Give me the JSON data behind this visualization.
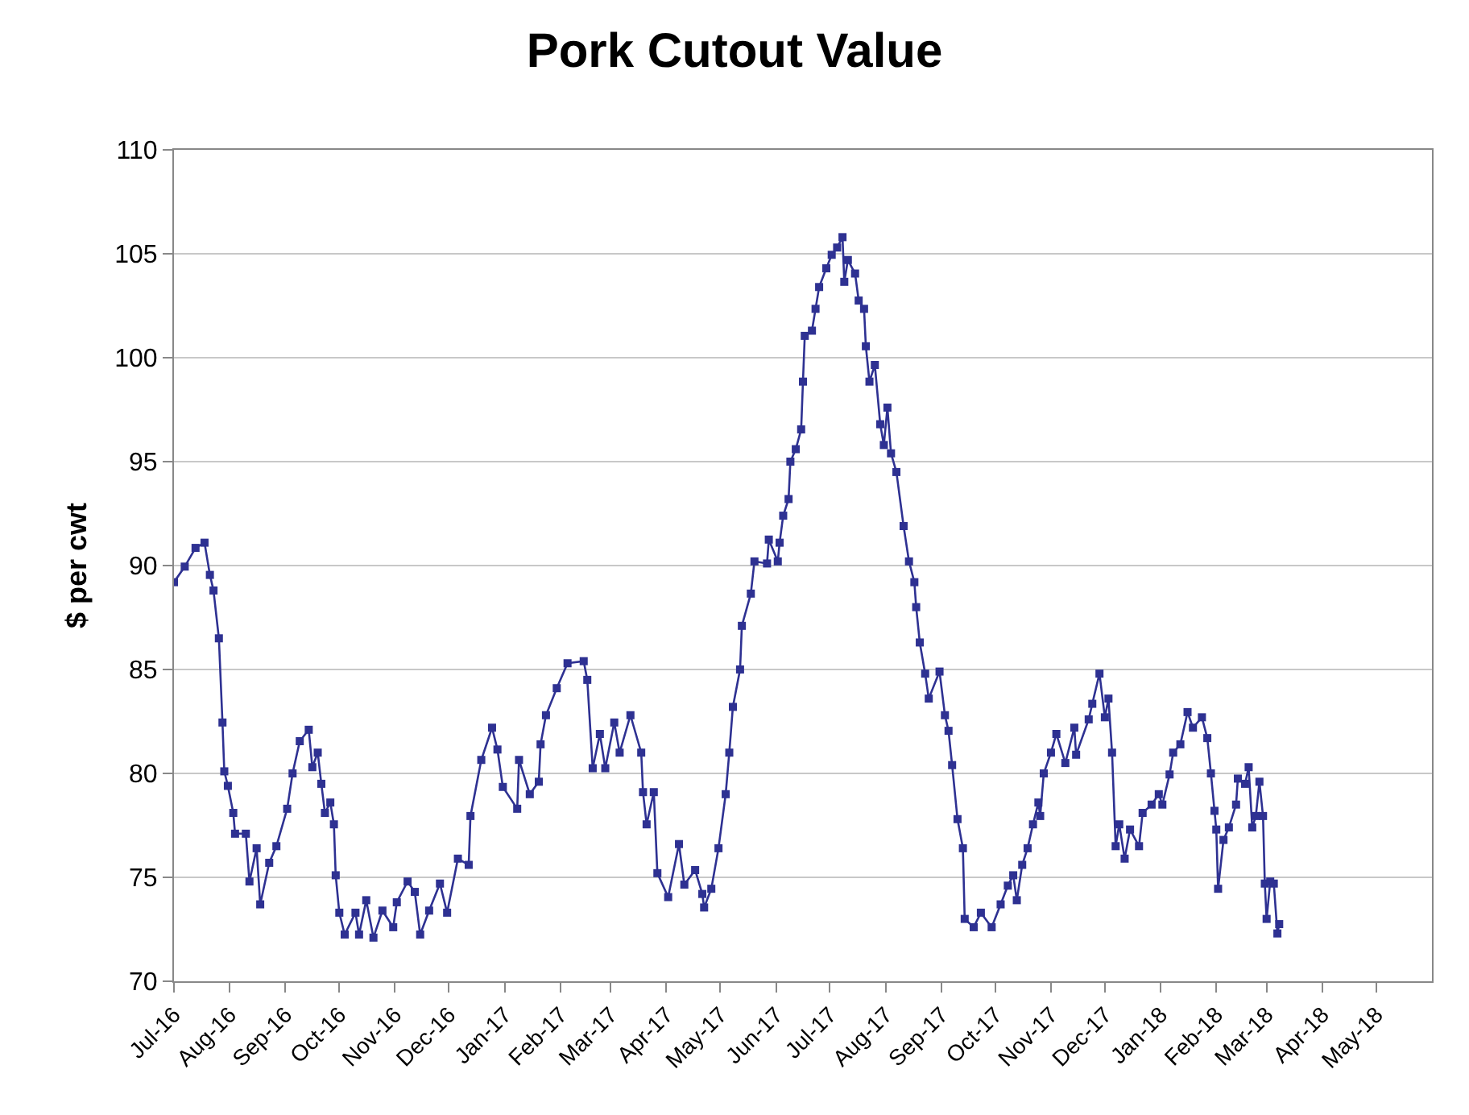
{
  "chart_data": {
    "type": "line",
    "title": "Pork Cutout Value",
    "ylabel": "$ per cwt",
    "x": [
      "2016-07-01",
      "2016-07-07",
      "2016-07-13",
      "2016-07-18",
      "2016-07-21",
      "2016-07-23",
      "2016-07-26",
      "2016-07-28",
      "2016-07-29",
      "2016-07-31",
      "2016-08-03",
      "2016-08-04",
      "2016-08-10",
      "2016-08-12",
      "2016-08-16",
      "2016-08-18",
      "2016-08-23",
      "2016-08-27",
      "2016-09-02",
      "2016-09-05",
      "2016-09-09",
      "2016-09-14",
      "2016-09-16",
      "2016-09-19",
      "2016-09-21",
      "2016-09-23",
      "2016-09-26",
      "2016-09-28",
      "2016-09-29",
      "2016-10-01",
      "2016-10-04",
      "2016-10-10",
      "2016-10-12",
      "2016-10-16",
      "2016-10-20",
      "2016-10-25",
      "2016-10-31",
      "2016-11-02",
      "2016-11-08",
      "2016-11-12",
      "2016-11-15",
      "2016-11-20",
      "2016-11-26",
      "2016-11-30",
      "2016-12-06",
      "2016-12-12",
      "2016-12-13",
      "2016-12-19",
      "2016-12-25",
      "2016-12-28",
      "2016-12-31",
      "2017-01-08",
      "2017-01-09",
      "2017-01-15",
      "2017-01-20",
      "2017-01-21",
      "2017-01-24",
      "2017-01-30",
      "2017-02-05",
      "2017-02-14",
      "2017-02-16",
      "2017-02-19",
      "2017-02-23",
      "2017-02-26",
      "2017-03-03",
      "2017-03-06",
      "2017-03-12",
      "2017-03-18",
      "2017-03-19",
      "2017-03-21",
      "2017-03-25",
      "2017-03-27",
      "2017-04-02",
      "2017-04-08",
      "2017-04-11",
      "2017-04-17",
      "2017-04-21",
      "2017-04-22",
      "2017-04-26",
      "2017-04-30",
      "2017-05-04",
      "2017-05-06",
      "2017-05-08",
      "2017-05-12",
      "2017-05-13",
      "2017-05-18",
      "2017-05-20",
      "2017-05-27",
      "2017-05-28",
      "2017-06-02",
      "2017-06-03",
      "2017-06-05",
      "2017-06-08",
      "2017-06-09",
      "2017-06-12",
      "2017-06-15",
      "2017-06-16",
      "2017-06-17",
      "2017-06-21",
      "2017-06-23",
      "2017-06-25",
      "2017-06-29",
      "2017-07-02",
      "2017-07-05",
      "2017-07-08",
      "2017-07-09",
      "2017-07-11",
      "2017-07-15",
      "2017-07-17",
      "2017-07-20",
      "2017-07-21",
      "2017-07-23",
      "2017-07-26",
      "2017-07-29",
      "2017-07-31",
      "2017-08-02",
      "2017-08-04",
      "2017-08-07",
      "2017-08-11",
      "2017-08-14",
      "2017-08-17",
      "2017-08-18",
      "2017-08-20",
      "2017-08-23",
      "2017-08-25",
      "2017-08-31",
      "2017-09-03",
      "2017-09-05",
      "2017-09-07",
      "2017-09-10",
      "2017-09-13",
      "2017-09-14",
      "2017-09-19",
      "2017-09-23",
      "2017-09-29",
      "2017-10-04",
      "2017-10-08",
      "2017-10-11",
      "2017-10-13",
      "2017-10-16",
      "2017-10-19",
      "2017-10-22",
      "2017-10-25",
      "2017-10-26",
      "2017-10-28",
      "2017-11-01",
      "2017-11-04",
      "2017-11-09",
      "2017-11-14",
      "2017-11-15",
      "2017-11-22",
      "2017-11-24",
      "2017-11-28",
      "2017-12-01",
      "2017-12-03",
      "2017-12-05",
      "2017-12-07",
      "2017-12-09",
      "2017-12-12",
      "2017-12-15",
      "2017-12-20",
      "2017-12-22",
      "2017-12-27",
      "2017-12-31",
      "2018-01-02",
      "2018-01-06",
      "2018-01-08",
      "2018-01-12",
      "2018-01-16",
      "2018-01-19",
      "2018-01-24",
      "2018-01-27",
      "2018-01-29",
      "2018-01-31",
      "2018-02-01",
      "2018-02-02",
      "2018-02-05",
      "2018-02-08",
      "2018-02-12",
      "2018-02-13",
      "2018-02-17",
      "2018-02-19",
      "2018-02-21",
      "2018-02-23",
      "2018-02-25",
      "2018-02-27",
      "2018-02-28",
      "2018-03-01",
      "2018-03-03",
      "2018-03-05",
      "2018-03-07",
      "2018-03-08"
    ],
    "series": [
      {
        "color": "#2e3192",
        "values": [
          89.2,
          89.95,
          90.85,
          91.1,
          89.55,
          88.8,
          86.5,
          82.45,
          80.1,
          79.4,
          78.1,
          77.1,
          77.1,
          74.8,
          76.4,
          73.7,
          75.7,
          76.5,
          78.3,
          80.0,
          81.55,
          82.1,
          80.3,
          81.0,
          79.5,
          78.1,
          78.6,
          77.55,
          75.1,
          73.3,
          72.25,
          73.3,
          72.25,
          73.9,
          72.1,
          73.4,
          72.6,
          73.8,
          74.8,
          74.3,
          72.25,
          73.4,
          74.7,
          73.3,
          75.9,
          75.6,
          77.95,
          80.65,
          82.2,
          81.15,
          79.35,
          78.3,
          80.65,
          79.0,
          79.6,
          81.4,
          82.8,
          84.1,
          85.3,
          85.4,
          84.5,
          80.25,
          81.9,
          80.25,
          82.45,
          81.0,
          82.8,
          81.0,
          79.1,
          77.55,
          79.1,
          75.2,
          74.05,
          76.6,
          74.65,
          75.35,
          74.2,
          73.55,
          74.45,
          76.4,
          79.0,
          81.0,
          83.2,
          85.0,
          87.1,
          88.65,
          90.2,
          90.1,
          91.25,
          90.2,
          91.1,
          92.4,
          93.2,
          95.0,
          95.6,
          96.55,
          98.85,
          101.05,
          101.3,
          102.35,
          103.4,
          104.3,
          104.95,
          105.3,
          105.8,
          103.65,
          104.7,
          104.05,
          102.75,
          102.35,
          100.55,
          98.85,
          99.65,
          96.8,
          95.8,
          97.6,
          95.4,
          94.5,
          91.9,
          90.2,
          89.2,
          88.0,
          86.3,
          84.8,
          83.6,
          84.9,
          82.8,
          82.05,
          80.4,
          77.8,
          76.4,
          73.0,
          72.6,
          73.3,
          72.6,
          73.7,
          74.6,
          75.1,
          73.9,
          75.6,
          76.4,
          77.55,
          78.6,
          77.95,
          80.0,
          81.0,
          81.9,
          80.5,
          82.2,
          80.9,
          82.6,
          83.35,
          84.8,
          82.7,
          83.6,
          81.0,
          76.5,
          77.55,
          75.9,
          77.3,
          76.5,
          78.1,
          78.5,
          79.0,
          78.5,
          79.95,
          81.0,
          81.4,
          82.95,
          82.2,
          82.7,
          81.7,
          80.0,
          78.2,
          77.3,
          74.45,
          76.8,
          77.4,
          78.5,
          79.75,
          79.5,
          80.3,
          77.4,
          77.95,
          79.6,
          77.95,
          74.7,
          73.0,
          74.8,
          74.7,
          72.3,
          72.75
        ]
      }
    ],
    "xlim": [
      "2016-07-01",
      "2018-06-01"
    ],
    "xticks": [
      {
        "value": "2016-07-01",
        "label": "Jul-16"
      },
      {
        "value": "2016-08-01",
        "label": "Aug-16"
      },
      {
        "value": "2016-09-01",
        "label": "Sep-16"
      },
      {
        "value": "2016-10-01",
        "label": "Oct-16"
      },
      {
        "value": "2016-11-01",
        "label": "Nov-16"
      },
      {
        "value": "2016-12-01",
        "label": "Dec-16"
      },
      {
        "value": "2017-01-01",
        "label": "Jan-17"
      },
      {
        "value": "2017-02-01",
        "label": "Feb-17"
      },
      {
        "value": "2017-03-01",
        "label": "Mar-17"
      },
      {
        "value": "2017-04-01",
        "label": "Apr-17"
      },
      {
        "value": "2017-05-01",
        "label": "May-17"
      },
      {
        "value": "2017-06-01",
        "label": "Jun-17"
      },
      {
        "value": "2017-07-01",
        "label": "Jul-17"
      },
      {
        "value": "2017-08-01",
        "label": "Aug-17"
      },
      {
        "value": "2017-09-01",
        "label": "Sep-17"
      },
      {
        "value": "2017-10-01",
        "label": "Oct-17"
      },
      {
        "value": "2017-11-01",
        "label": "Nov-17"
      },
      {
        "value": "2017-12-01",
        "label": "Dec-17"
      },
      {
        "value": "2018-01-01",
        "label": "Jan-18"
      },
      {
        "value": "2018-02-01",
        "label": "Feb-18"
      },
      {
        "value": "2018-03-01",
        "label": "Mar-18"
      },
      {
        "value": "2018-04-01",
        "label": "Apr-18"
      },
      {
        "value": "2018-05-01",
        "label": "May-18"
      }
    ],
    "ylim": [
      70,
      110
    ],
    "yticks": [
      70,
      75,
      80,
      85,
      90,
      95,
      100,
      105,
      110
    ],
    "grid": "y",
    "marker": "square",
    "line_style": "solid"
  }
}
